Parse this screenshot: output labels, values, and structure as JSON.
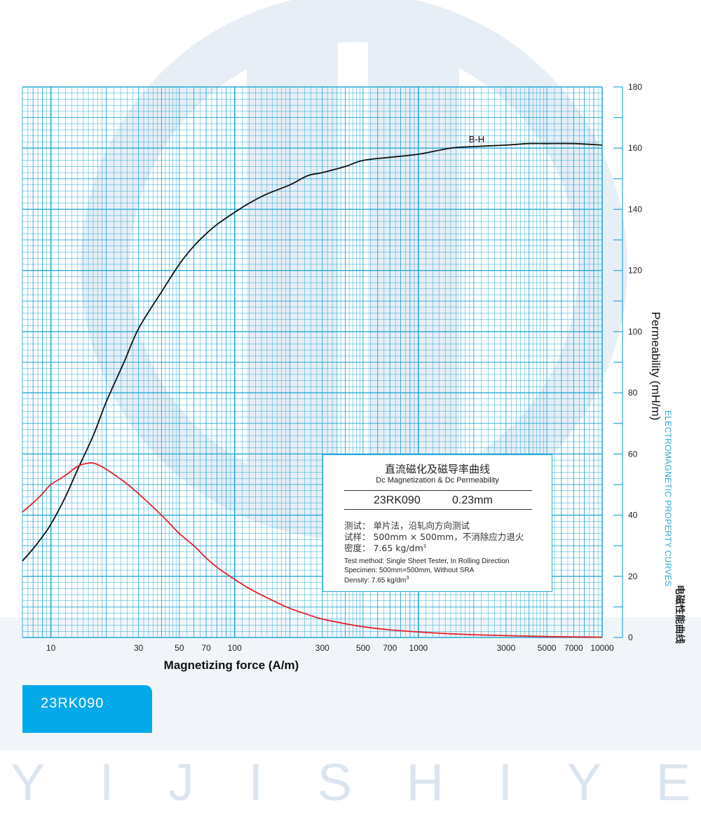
{
  "chart_data": {
    "type": "line",
    "xlabel": "Magnetizing force (A/m)",
    "ylabel": "Permeability (mH/m)",
    "xscale": "log",
    "xlim": [
      7,
      10000
    ],
    "ylim": [
      0,
      180
    ],
    "x_ticks": [
      "10",
      "30",
      "50",
      "70",
      "100",
      "300",
      "500",
      "700",
      "1000",
      "3000",
      "5000",
      "7000",
      "10000"
    ],
    "x_tick_values": [
      10,
      30,
      50,
      70,
      100,
      300,
      500,
      700,
      1000,
      3000,
      5000,
      7000,
      10000
    ],
    "y_ticks": [
      "0",
      "20",
      "40",
      "60",
      "80",
      "100",
      "120",
      "140",
      "160",
      "180"
    ],
    "y_tick_values": [
      0,
      20,
      40,
      60,
      80,
      100,
      120,
      140,
      160,
      180
    ],
    "grid": true,
    "series": [
      {
        "name": "B-H",
        "color": "#111111",
        "x": [
          7,
          8,
          9,
          10,
          12,
          14,
          17,
          20,
          25,
          30,
          40,
          50,
          60,
          70,
          80,
          100,
          120,
          150,
          200,
          250,
          300,
          400,
          500,
          700,
          1000,
          1500,
          2000,
          3000,
          4000,
          5000,
          7000,
          10000
        ],
        "y": [
          25,
          29,
          33,
          37,
          46,
          55,
          66,
          77,
          90,
          101,
          113,
          122,
          128,
          132,
          135,
          139,
          142,
          145,
          148,
          151,
          152,
          154,
          156,
          157,
          158,
          160,
          160.5,
          161,
          161.5,
          161.5,
          161.5,
          161
        ]
      },
      {
        "name": "",
        "color": "#e8202a",
        "x": [
          7,
          8,
          9,
          10,
          12,
          14,
          16,
          17,
          18,
          20,
          25,
          30,
          40,
          50,
          60,
          70,
          80,
          100,
          120,
          150,
          200,
          250,
          300,
          400,
          500,
          700,
          1000,
          1500,
          2000,
          3000,
          5000,
          7000,
          10000
        ],
        "y": [
          41,
          44,
          47,
          50,
          53,
          56,
          57,
          57,
          56.5,
          55,
          51,
          47,
          40,
          34,
          30,
          26,
          23,
          19,
          16,
          13,
          9.5,
          7.5,
          6,
          4.5,
          3.5,
          2.5,
          1.8,
          1.2,
          0.9,
          0.6,
          0.3,
          0.2,
          0.1
        ]
      }
    ]
  },
  "info_box": {
    "title_cn": "直流磁化及磁导率曲线",
    "title_en": "Dc Magnetization & Dc Permeability",
    "grade": "23RK090",
    "thickness": "0.23mm",
    "line1_cn": "测试：  单片法，沿轧向方向测试",
    "line2_cn": "试样：  500mm × 500mm，不消除应力退火",
    "line3_cn": "密度：  7.65 kg/dm",
    "line3_cn_sup": "3",
    "line1_en": "Test method: Single Sheet Tester, In Rolling Direction",
    "line2_en": "Specimen: 500mm×500mm, Without SRA",
    "line3_en": "Density: 7.65 kg/dm",
    "line3_en_sup": "3"
  },
  "badge": {
    "label": "23RK090"
  },
  "side": {
    "en": "ELECTROMAGNETIC PROPERTY CURVES",
    "cn": "电磁性能曲线"
  },
  "watermark": {
    "text": "YIJISHIYE"
  },
  "colors": {
    "grid": "#27a9d8",
    "accent": "#03a9e8",
    "bh_curve": "#111111",
    "permeability_curve": "#e8202a"
  }
}
